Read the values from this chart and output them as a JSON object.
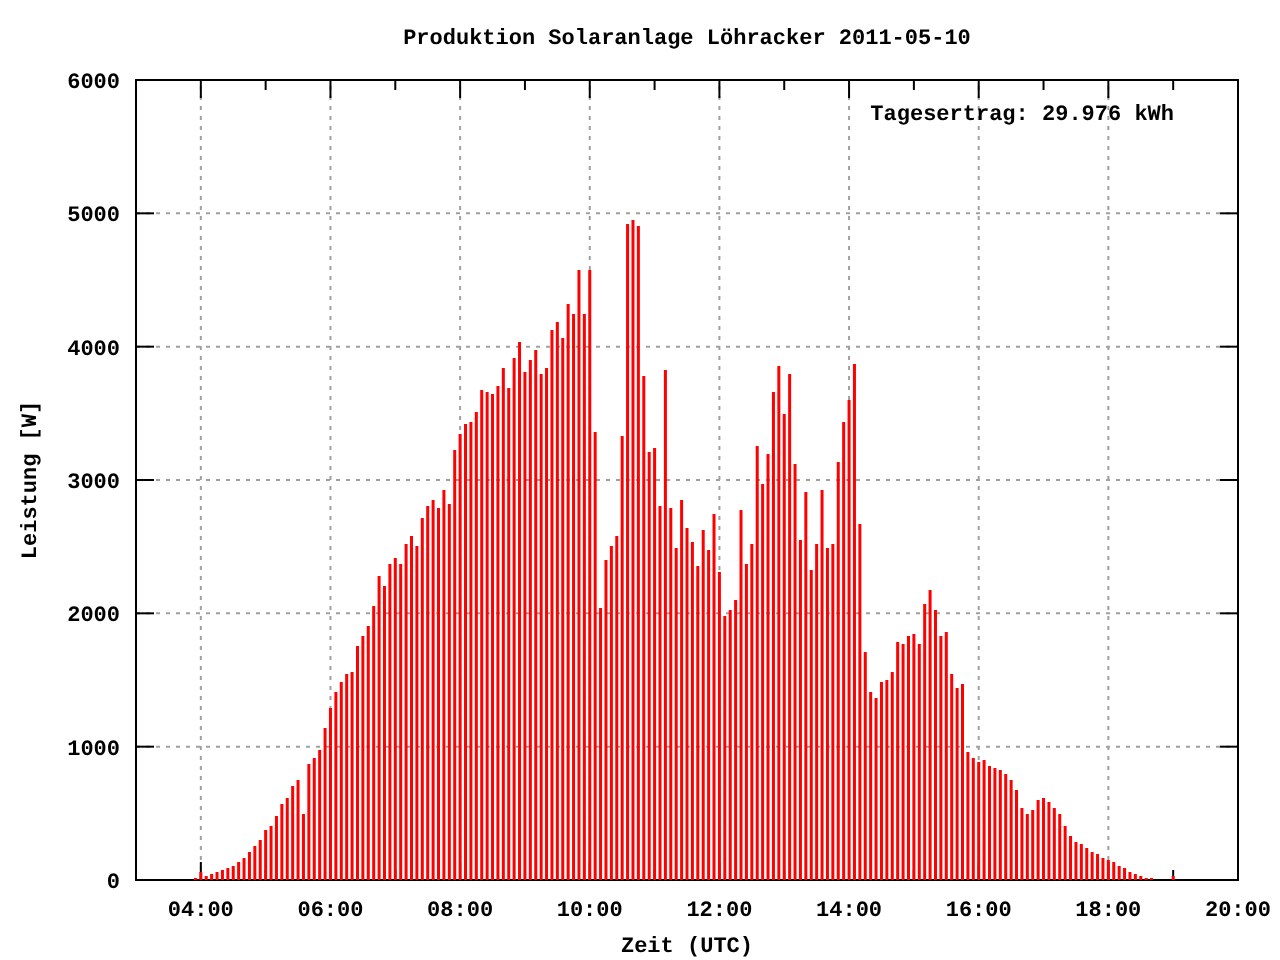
{
  "chart_data": {
    "type": "bar",
    "title": "Produktion Solaranlage Löhracker 2011-05-10",
    "xlabel": "Zeit (UTC)",
    "ylabel": "Leistung [W]",
    "annotations": [
      "Tagesertrag: 29.976 kWh"
    ],
    "x": [
      3.9167,
      4,
      4.0833,
      4.1667,
      4.25,
      4.3333,
      4.4167,
      4.5,
      4.5833,
      4.6667,
      4.75,
      4.8333,
      4.9167,
      5,
      5.0833,
      5.1667,
      5.25,
      5.3333,
      5.4167,
      5.5,
      5.5833,
      5.6667,
      5.75,
      5.8333,
      5.9167,
      6,
      6.0833,
      6.1667,
      6.25,
      6.3333,
      6.4167,
      6.5,
      6.5833,
      6.6667,
      6.75,
      6.8333,
      6.9167,
      7,
      7.0833,
      7.1667,
      7.25,
      7.3333,
      7.4167,
      7.5,
      7.5833,
      7.6667,
      7.75,
      7.8333,
      7.9167,
      8,
      8.0833,
      8.1667,
      8.25,
      8.3333,
      8.4167,
      8.5,
      8.5833,
      8.6667,
      8.75,
      8.8333,
      8.9167,
      9,
      9.0833,
      9.1667,
      9.25,
      9.3333,
      9.4167,
      9.5,
      9.5833,
      9.6667,
      9.75,
      9.8333,
      9.9167,
      10,
      10.0833,
      10.1667,
      10.25,
      10.3333,
      10.4167,
      10.5,
      10.5833,
      10.6667,
      10.75,
      10.8333,
      10.9167,
      11,
      11.0833,
      11.1667,
      11.25,
      11.3333,
      11.4167,
      11.5,
      11.5833,
      11.6667,
      11.75,
      11.8333,
      11.9167,
      12,
      12.0833,
      12.1667,
      12.25,
      12.3333,
      12.4167,
      12.5,
      12.5833,
      12.6667,
      12.75,
      12.8333,
      12.9167,
      13,
      13.0833,
      13.1667,
      13.25,
      13.3333,
      13.4167,
      13.5,
      13.5833,
      13.6667,
      13.75,
      13.8333,
      13.9167,
      14,
      14.0833,
      14.1667,
      14.25,
      14.3333,
      14.4167,
      14.5,
      14.5833,
      14.6667,
      14.75,
      14.8333,
      14.9167,
      15,
      15.0833,
      15.1667,
      15.25,
      15.3333,
      15.4167,
      15.5,
      15.5833,
      15.6667,
      15.75,
      15.8333,
      15.9167,
      16,
      16.0833,
      16.1667,
      16.25,
      16.3333,
      16.4167,
      16.5,
      16.5833,
      16.6667,
      16.75,
      16.8333,
      16.9167,
      17,
      17.0833,
      17.1667,
      17.25,
      17.3333,
      17.4167,
      17.5,
      17.5833,
      17.6667,
      17.75,
      17.8333,
      17.9167,
      18,
      18.0833,
      18.1667,
      18.25,
      18.3333,
      18.4167,
      18.5,
      18.5833,
      18.6667,
      19
    ],
    "values": [
      15,
      60,
      30,
      45,
      60,
      75,
      90,
      105,
      135,
      165,
      210,
      255,
      300,
      375,
      405,
      480,
      570,
      615,
      705,
      750,
      495,
      870,
      915,
      975,
      1140,
      1290,
      1410,
      1485,
      1545,
      1560,
      1755,
      1830,
      1905,
      2055,
      2280,
      2205,
      2370,
      2415,
      2370,
      2520,
      2580,
      2505,
      2715,
      2805,
      2850,
      2790,
      2925,
      2820,
      3225,
      3345,
      3420,
      3435,
      3510,
      3675,
      3660,
      3645,
      3705,
      3840,
      3690,
      3915,
      4035,
      3810,
      3900,
      3975,
      3795,
      3840,
      4125,
      4185,
      4065,
      4320,
      4245,
      4575,
      4245,
      4575,
      3360,
      2040,
      2400,
      2505,
      2580,
      3330,
      4920,
      4950,
      4905,
      3780,
      3210,
      3240,
      2805,
      3825,
      2790,
      2490,
      2850,
      2640,
      2535,
      2355,
      2625,
      2475,
      2745,
      2310,
      1980,
      2025,
      2100,
      2775,
      2370,
      2520,
      3255,
      2970,
      3195,
      3660,
      3855,
      3495,
      3795,
      3120,
      2550,
      2910,
      2325,
      2520,
      2925,
      2490,
      2520,
      3135,
      3435,
      3600,
      3870,
      2670,
      1710,
      1410,
      1365,
      1485,
      1500,
      1560,
      1785,
      1770,
      1830,
      1845,
      1770,
      2070,
      2175,
      2025,
      1830,
      1860,
      1545,
      1440,
      1470,
      960,
      915,
      885,
      900,
      855,
      840,
      825,
      795,
      750,
      675,
      540,
      495,
      525,
      600,
      615,
      585,
      540,
      495,
      405,
      330,
      285,
      270,
      240,
      210,
      195,
      165,
      150,
      135,
      105,
      90,
      60,
      45,
      30,
      15,
      15,
      30
    ],
    "color": "#ff0000",
    "xlim": [
      3,
      20
    ],
    "xticks": [
      {
        "value": 4,
        "label": "04:00"
      },
      {
        "value": 5,
        "label": null
      },
      {
        "value": 6,
        "label": "06:00"
      },
      {
        "value": 7,
        "label": null
      },
      {
        "value": 8,
        "label": "08:00"
      },
      {
        "value": 9,
        "label": null
      },
      {
        "value": 10,
        "label": "10:00"
      },
      {
        "value": 11,
        "label": null
      },
      {
        "value": 12,
        "label": "12:00"
      },
      {
        "value": 13,
        "label": null
      },
      {
        "value": 14,
        "label": "14:00"
      },
      {
        "value": 15,
        "label": null
      },
      {
        "value": 16,
        "label": "16:00"
      },
      {
        "value": 17,
        "label": null
      },
      {
        "value": 18,
        "label": "18:00"
      },
      {
        "value": 19,
        "label": null
      },
      {
        "value": 20,
        "label": "20:00"
      }
    ],
    "ylim": [
      0,
      6000
    ],
    "yticks": [
      0,
      1000,
      2000,
      3000,
      4000,
      5000,
      6000
    ],
    "grid": true
  }
}
